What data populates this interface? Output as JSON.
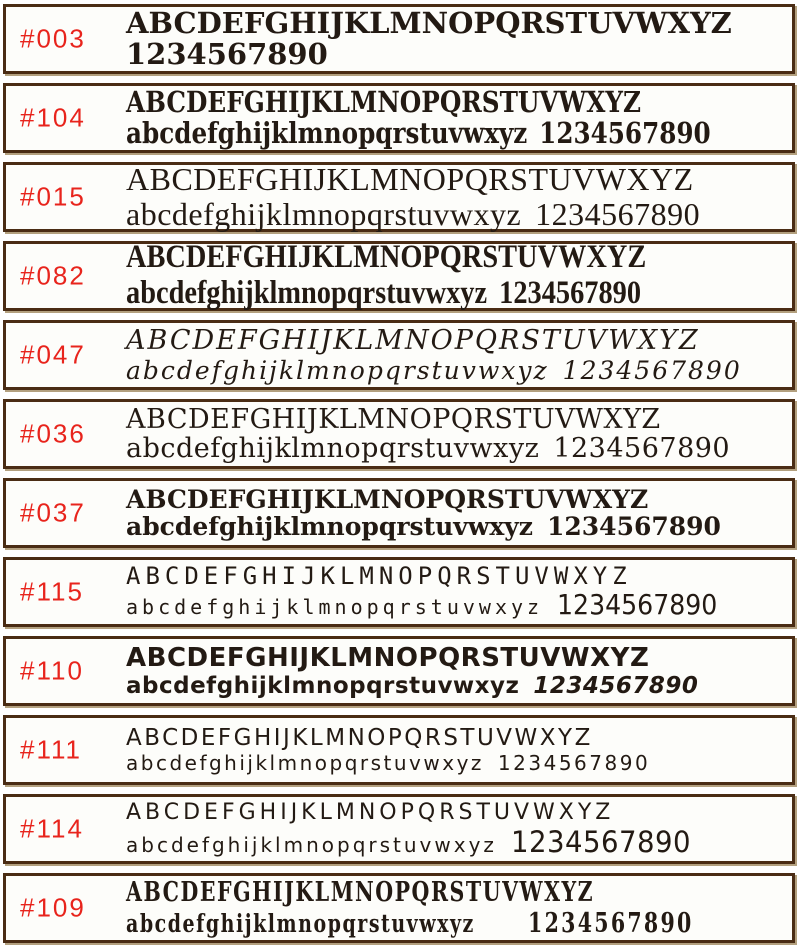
{
  "page": {
    "kind": "font-specimen-catalog",
    "background": "#ffffff",
    "box_background": "#fdfdfa",
    "border_color": "#4a2c14",
    "shadow_color": "#a68f68",
    "label_color": "#e8241c",
    "text_color": "#231a13"
  },
  "rows": [
    {
      "label": "#003",
      "style": "heavy-slab-serif-stencil",
      "line1": "ABCDEFGHIJKLMNOPQRSTUVWXYZ",
      "line2_letters": "",
      "line2_numbers": "1234567890"
    },
    {
      "label": "#104",
      "style": "bold-condensed-serif",
      "line1": "ABCDEFGHIJKLMNOPQRSTUVWXYZ",
      "line2_letters": "abcdefghijklmnopqrstuvwxyz",
      "line2_numbers": "1234567890"
    },
    {
      "label": "#015",
      "style": "roman-serif",
      "line1": "ABCDEFGHIJKLMNOPQRSTUVWXYZ",
      "line2_letters": "abcdefghijklmnopqrstuvwxyz",
      "line2_numbers": "1234567890"
    },
    {
      "label": "#082",
      "style": "bold-condensed-roman-serif",
      "line1": "ABCDEFGHIJKLMNOPQRSTUVWXYZ",
      "line2_letters": "abcdefghijklmnopqrstuvwxyz",
      "line2_numbers": "1234567890"
    },
    {
      "label": "#047",
      "style": "italic-serif-letterspaced",
      "line1": "ABCDEFGHIJKLMNOPQRSTUVWXYZ",
      "line2_letters": "abcdefghijklmnopqrstuvwxyz",
      "line2_numbers": "1234567890"
    },
    {
      "label": "#036",
      "style": "typewriter-slab-serif",
      "line1": "ABCDEFGHIJKLMNOPQRSTUVWXYZ",
      "line2_letters": "abcdefghijklmnopqrstuvwxyz",
      "line2_numbers": "1234567890"
    },
    {
      "label": "#037",
      "style": "rounded-geometric-slab",
      "line1": "ABCDEFGHIJKLMNOPQRSTUVWXYZ",
      "line2_letters": "abcdefghijklmnopqrstuvwxyz",
      "line2_numbers": "1234567890"
    },
    {
      "label": "#115",
      "style": "typewriter-letterspaced-large-numerals",
      "line1": "ABCDEFGHIJKLMNOPQRSTUVWXYZ",
      "line2_letters": "abcdefghijklmnopqrstuvwxyz",
      "line2_numbers": "1234567890"
    },
    {
      "label": "#110",
      "style": "bold-rounded-marker",
      "line1": "ABCDEFGHIJKLMNOPQRSTUVWXYZ",
      "line2_letters": "abcdefghijklmnopqrstuvwxyz",
      "line2_numbers": "1234567890"
    },
    {
      "label": "#111",
      "style": "light-rounded-hand",
      "line1": "ABCDEFGHIJKLMNOPQRSTUVWXYZ",
      "line2_letters": "abcdefghijklmnopqrstuvwxyz",
      "line2_numbers": "1234567890"
    },
    {
      "label": "#114",
      "style": "casual-print-hand-large-numerals",
      "line1": "ABCDEFGHIJKLMNOPQRSTUVWXYZ",
      "line2_letters": "abcdefghijklmnopqrstuvwxyz",
      "line2_numbers": "1234567890"
    },
    {
      "label": "#109",
      "style": "western-condensed-slab",
      "line1": "ABCDEFGHIJKLMNOPQRSTUVWXYZ",
      "line2_letters": "abcdefghijklmnopqrstuvwxyz",
      "line2_numbers": "1234567890"
    }
  ]
}
